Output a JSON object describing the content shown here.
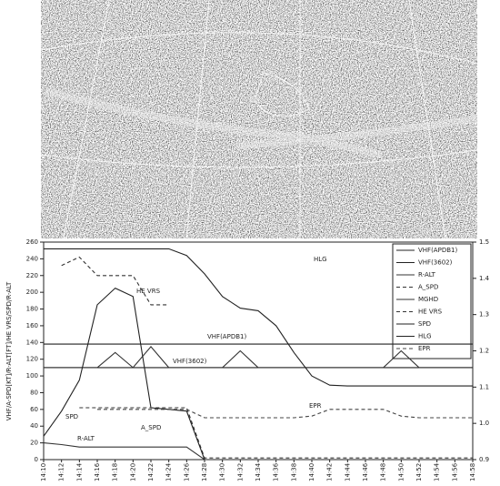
{
  "chart_data": {
    "type": "line",
    "y_label": "VHF/A-SPD[KT]/R-ALT[FT]/HE VRS/SPD/R-ALT",
    "categories": [
      "14:10",
      "14:12",
      "14:14",
      "14:16",
      "14:18",
      "14:20",
      "14:22",
      "14:24",
      "14:26",
      "14:28",
      "14:30",
      "14:32",
      "14:34",
      "14:36",
      "14:38",
      "14:40",
      "14:42",
      "14:44",
      "14:46",
      "14:48",
      "14:50",
      "14:52",
      "14:54",
      "14:56",
      "14:58"
    ],
    "ylim": [
      0,
      260
    ],
    "yticks": [
      0,
      20,
      40,
      60,
      80,
      100,
      120,
      140,
      160,
      180,
      200,
      220,
      240,
      260
    ],
    "y2lim": [
      0.9,
      1.5
    ],
    "y2ticks": [
      {
        "value": 0.9,
        "label": "0.9"
      },
      {
        "value": 1,
        "label": "1.0"
      },
      1.1,
      1.2,
      1.3,
      1.4,
      1.5
    ],
    "legend": "top-right",
    "series": [
      {
        "name": "VHF(APDB1)",
        "color": "#222222",
        "dash": false,
        "values": [
          138,
          138,
          138,
          138,
          138,
          138,
          138,
          138,
          138,
          138,
          138,
          138,
          138,
          138,
          138,
          138,
          138,
          138,
          138,
          138,
          138,
          138,
          138,
          138,
          138
        ]
      },
      {
        "name": "VHF(3602)",
        "color": "#222222",
        "dash": false,
        "values": [
          110,
          110,
          110,
          110,
          110,
          110,
          110,
          110,
          110,
          110,
          110,
          110,
          110,
          110,
          110,
          110,
          110,
          110,
          110,
          110,
          110,
          110,
          110,
          110,
          110
        ]
      },
      {
        "name": "R-ALT",
        "color": "#333333",
        "dash": false,
        "values": [
          20,
          18,
          15,
          15,
          15,
          15,
          15,
          15,
          15,
          0,
          0,
          0,
          0,
          0,
          0,
          0,
          0,
          0,
          0,
          0,
          0,
          0,
          0,
          0,
          0
        ]
      },
      {
        "name": "A_SPD",
        "color": "#333333",
        "dash": true,
        "values": [
          null,
          null,
          62,
          62,
          62,
          62,
          62,
          62,
          62,
          2,
          2,
          2,
          2,
          2,
          2,
          2,
          2,
          2,
          2,
          2,
          2,
          2,
          2,
          2,
          2
        ]
      },
      {
        "name": "MGHD",
        "color": "#333333",
        "dash": false,
        "values": [
          110,
          110,
          110,
          110,
          128,
          110,
          135,
          110,
          110,
          110,
          110,
          130,
          110,
          110,
          110,
          110,
          110,
          110,
          110,
          110,
          130,
          110,
          110,
          110,
          110
        ]
      },
      {
        "name": "HE VRS",
        "color": "#333333",
        "dash": true,
        "values": [
          null,
          232,
          242,
          220,
          220,
          220,
          185,
          185,
          null,
          null,
          null,
          null,
          null,
          null,
          null,
          null,
          null,
          null,
          null,
          null,
          null,
          null,
          null,
          null,
          null
        ]
      },
      {
        "name": "SPD",
        "color": "#222222",
        "dash": false,
        "values": [
          28,
          58,
          95,
          185,
          205,
          195,
          62,
          60,
          58,
          0,
          0,
          0,
          0,
          0,
          0,
          0,
          0,
          0,
          0,
          0,
          0,
          0,
          0,
          0,
          0
        ]
      },
      {
        "name": "HLG",
        "color": "#222222",
        "dash": false,
        "values": [
          252,
          252,
          252,
          252,
          252,
          252,
          252,
          252,
          244,
          222,
          195,
          181,
          178,
          160,
          128,
          100,
          89,
          88,
          88,
          88,
          88,
          88,
          88,
          88,
          88
        ]
      },
      {
        "name": "EPR",
        "color": "#444444",
        "dash": true,
        "values": [
          null,
          null,
          null,
          60,
          60,
          60,
          60,
          60,
          60,
          50,
          50,
          50,
          50,
          50,
          50,
          52,
          60,
          60,
          60,
          60,
          52,
          50,
          50,
          50,
          50
        ]
      }
    ],
    "annotations": [
      "HLG",
      "HE VRS",
      "VHF(APDB1)",
      "VHF(3602)",
      "EPR",
      "SPD",
      "A_SPD",
      "R-ALT"
    ]
  }
}
